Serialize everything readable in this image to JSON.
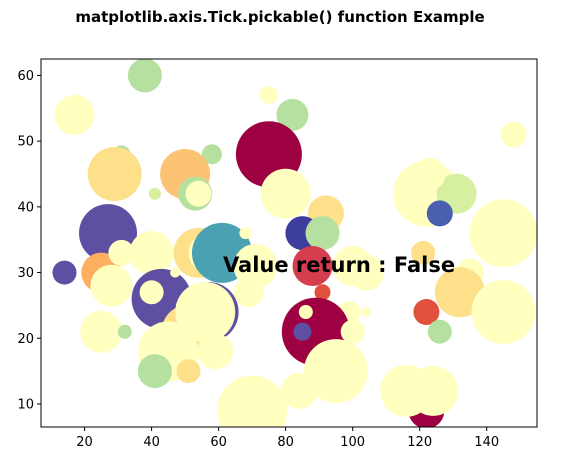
{
  "chart_data": {
    "type": "scatter",
    "title": "matplotlib.axis.Tick.pickable() function Example",
    "annotation": "Value return : False",
    "xlabel": "",
    "ylabel": "",
    "xlim": [
      7,
      155
    ],
    "ylim": [
      6.5,
      62.5
    ],
    "xticks": [
      20,
      40,
      60,
      80,
      100,
      120,
      140
    ],
    "yticks": [
      10,
      20,
      30,
      40,
      50,
      60
    ],
    "grid": false,
    "points": [
      {
        "x": 38,
        "y": 60,
        "r": 17,
        "color": "#b5e0a0"
      },
      {
        "x": 17,
        "y": 54,
        "r": 20,
        "color": "#ffffbf"
      },
      {
        "x": 75,
        "y": 57,
        "r": 9,
        "color": "#ffffbf"
      },
      {
        "x": 82,
        "y": 54,
        "r": 16,
        "color": "#b5e0a0"
      },
      {
        "x": 148,
        "y": 51,
        "r": 13,
        "color": "#ffffbf"
      },
      {
        "x": 31,
        "y": 48,
        "r": 9,
        "color": "#b5e0a0"
      },
      {
        "x": 75,
        "y": 48,
        "r": 33,
        "color": "#9e0142"
      },
      {
        "x": 58,
        "y": 48,
        "r": 10,
        "color": "#b5e0a0"
      },
      {
        "x": 29,
        "y": 45,
        "r": 27,
        "color": "#fee08b"
      },
      {
        "x": 50,
        "y": 45,
        "r": 25,
        "color": "#fdc374"
      },
      {
        "x": 41,
        "y": 42,
        "r": 6,
        "color": "#d7efa0"
      },
      {
        "x": 53,
        "y": 42,
        "r": 17,
        "color": "#b5e0a0"
      },
      {
        "x": 54,
        "y": 42,
        "r": 13,
        "color": "#ffffbf"
      },
      {
        "x": 80,
        "y": 42,
        "r": 25,
        "color": "#ffffbf"
      },
      {
        "x": 122,
        "y": 42,
        "r": 33,
        "color": "#ffffbf"
      },
      {
        "x": 131,
        "y": 42,
        "r": 20,
        "color": "#d7efa0"
      },
      {
        "x": 123,
        "y": 45,
        "r": 16,
        "color": "#ffffbf"
      },
      {
        "x": 126,
        "y": 39,
        "r": 13,
        "color": "#4a5fad"
      },
      {
        "x": 27,
        "y": 39,
        "r": 7,
        "color": "#ffffbf"
      },
      {
        "x": 27,
        "y": 36,
        "r": 29,
        "color": "#5e4fa2"
      },
      {
        "x": 92,
        "y": 39,
        "r": 18,
        "color": "#fee08b"
      },
      {
        "x": 85,
        "y": 36,
        "r": 17,
        "color": "#3d3d9e"
      },
      {
        "x": 91,
        "y": 36,
        "r": 17,
        "color": "#b5e0a0"
      },
      {
        "x": 145,
        "y": 36,
        "r": 34,
        "color": "#ffffbf"
      },
      {
        "x": 14,
        "y": 30,
        "r": 12,
        "color": "#5e4fa2"
      },
      {
        "x": 25,
        "y": 30,
        "r": 20,
        "color": "#fdae61"
      },
      {
        "x": 28,
        "y": 28,
        "r": 21,
        "color": "#ffffbf"
      },
      {
        "x": 31,
        "y": 33,
        "r": 13,
        "color": "#ffffbf"
      },
      {
        "x": 40,
        "y": 33,
        "r": 22,
        "color": "#ffffbf"
      },
      {
        "x": 43,
        "y": 26,
        "r": 30,
        "color": "#5e4fa2"
      },
      {
        "x": 40,
        "y": 27,
        "r": 12,
        "color": "#ffffbf"
      },
      {
        "x": 47,
        "y": 30,
        "r": 5,
        "color": "#ffffbf"
      },
      {
        "x": 54,
        "y": 33,
        "r": 25,
        "color": "#fee08b"
      },
      {
        "x": 57,
        "y": 33,
        "r": 20,
        "color": "#ffffbf"
      },
      {
        "x": 61,
        "y": 33,
        "r": 30,
        "color": "#4aa1b2"
      },
      {
        "x": 68,
        "y": 36,
        "r": 6,
        "color": "#ffffbf"
      },
      {
        "x": 71,
        "y": 31,
        "r": 22,
        "color": "#ffffbf"
      },
      {
        "x": 69,
        "y": 27,
        "r": 15,
        "color": "#ffffbf"
      },
      {
        "x": 88,
        "y": 31,
        "r": 20,
        "color": "#d53e4f"
      },
      {
        "x": 100,
        "y": 31,
        "r": 20,
        "color": "#ffffbf"
      },
      {
        "x": 104,
        "y": 30,
        "r": 18,
        "color": "#ffffbf"
      },
      {
        "x": 121,
        "y": 33,
        "r": 12,
        "color": "#fee08b"
      },
      {
        "x": 135,
        "y": 30,
        "r": 14,
        "color": "#ffffbf"
      },
      {
        "x": 132,
        "y": 27,
        "r": 25,
        "color": "#fee08b"
      },
      {
        "x": 145,
        "y": 24,
        "r": 32,
        "color": "#ffffbf"
      },
      {
        "x": 91,
        "y": 27,
        "r": 8,
        "color": "#e0503c"
      },
      {
        "x": 99,
        "y": 24,
        "r": 11,
        "color": "#ffffbf"
      },
      {
        "x": 104,
        "y": 24,
        "r": 5,
        "color": "#ffffbf"
      },
      {
        "x": 122,
        "y": 24,
        "r": 13,
        "color": "#e0503c"
      },
      {
        "x": 126,
        "y": 21,
        "r": 12,
        "color": "#b5e0a0"
      },
      {
        "x": 25,
        "y": 21,
        "r": 21,
        "color": "#ffffbf"
      },
      {
        "x": 32,
        "y": 21,
        "r": 7,
        "color": "#b5e0a0"
      },
      {
        "x": 57,
        "y": 24,
        "r": 30,
        "color": "#5e4fa2"
      },
      {
        "x": 51,
        "y": 21,
        "r": 27,
        "color": "#fee08b"
      },
      {
        "x": 56,
        "y": 24,
        "r": 30,
        "color": "#ffffbf"
      },
      {
        "x": 59,
        "y": 18,
        "r": 12,
        "color": "#9e0142"
      },
      {
        "x": 61,
        "y": 18,
        "r": 11,
        "color": "#9e0142"
      },
      {
        "x": 45,
        "y": 18,
        "r": 30,
        "color": "#ffffbf"
      },
      {
        "x": 59,
        "y": 18,
        "r": 18,
        "color": "#ffffbf"
      },
      {
        "x": 41,
        "y": 15,
        "r": 17,
        "color": "#b5e0a0"
      },
      {
        "x": 51,
        "y": 15,
        "r": 12,
        "color": "#fee08b"
      },
      {
        "x": 89,
        "y": 21,
        "r": 34,
        "color": "#9e0142"
      },
      {
        "x": 85,
        "y": 21,
        "r": 9,
        "color": "#5e4fa2"
      },
      {
        "x": 86,
        "y": 24,
        "r": 7,
        "color": "#ffffbf"
      },
      {
        "x": 100,
        "y": 21,
        "r": 12,
        "color": "#ffffbf"
      },
      {
        "x": 70,
        "y": 9,
        "r": 35,
        "color": "#ffffbf"
      },
      {
        "x": 84,
        "y": 12,
        "r": 18,
        "color": "#ffffbf"
      },
      {
        "x": 95,
        "y": 15,
        "r": 32,
        "color": "#ffffbf"
      },
      {
        "x": 122,
        "y": 9,
        "r": 18,
        "color": "#9e0142"
      },
      {
        "x": 116,
        "y": 12,
        "r": 26,
        "color": "#ffffbf"
      },
      {
        "x": 124,
        "y": 12,
        "r": 25,
        "color": "#ffffbf"
      }
    ]
  }
}
